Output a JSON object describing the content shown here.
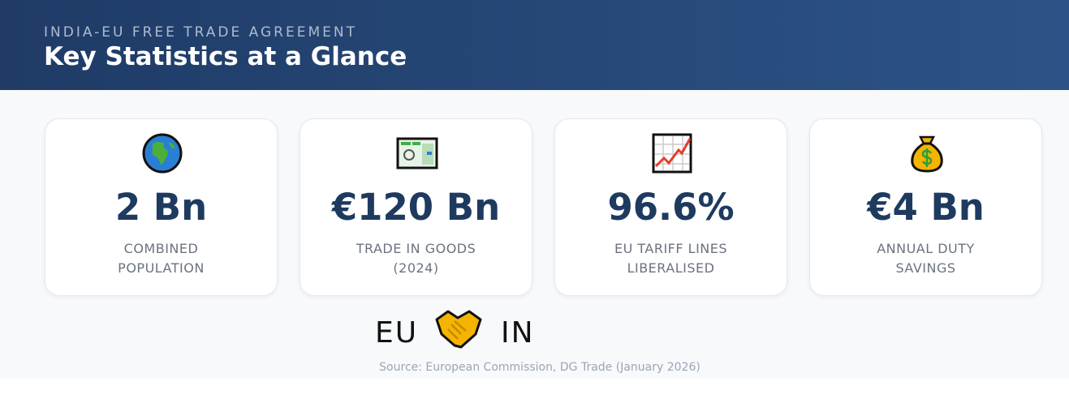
{
  "header": {
    "kicker": "INDIA-EU FREE TRADE AGREEMENT",
    "title": "Key Statistics at a Glance"
  },
  "cards": [
    {
      "value": "2 Bn",
      "label": "COMBINED POPULATION"
    },
    {
      "value": "€120 Bn",
      "label": "TRADE IN GOODS (2024)"
    },
    {
      "value": "96.6%",
      "label": "EU TARIFF LINES LIBERALISED"
    },
    {
      "value": "€4 Bn",
      "label": "ANNUAL DUTY SAVINGS"
    }
  ],
  "partners": {
    "left": "EU",
    "right": "IN"
  },
  "source": "Source: European Commission, DG Trade (January 2026)"
}
